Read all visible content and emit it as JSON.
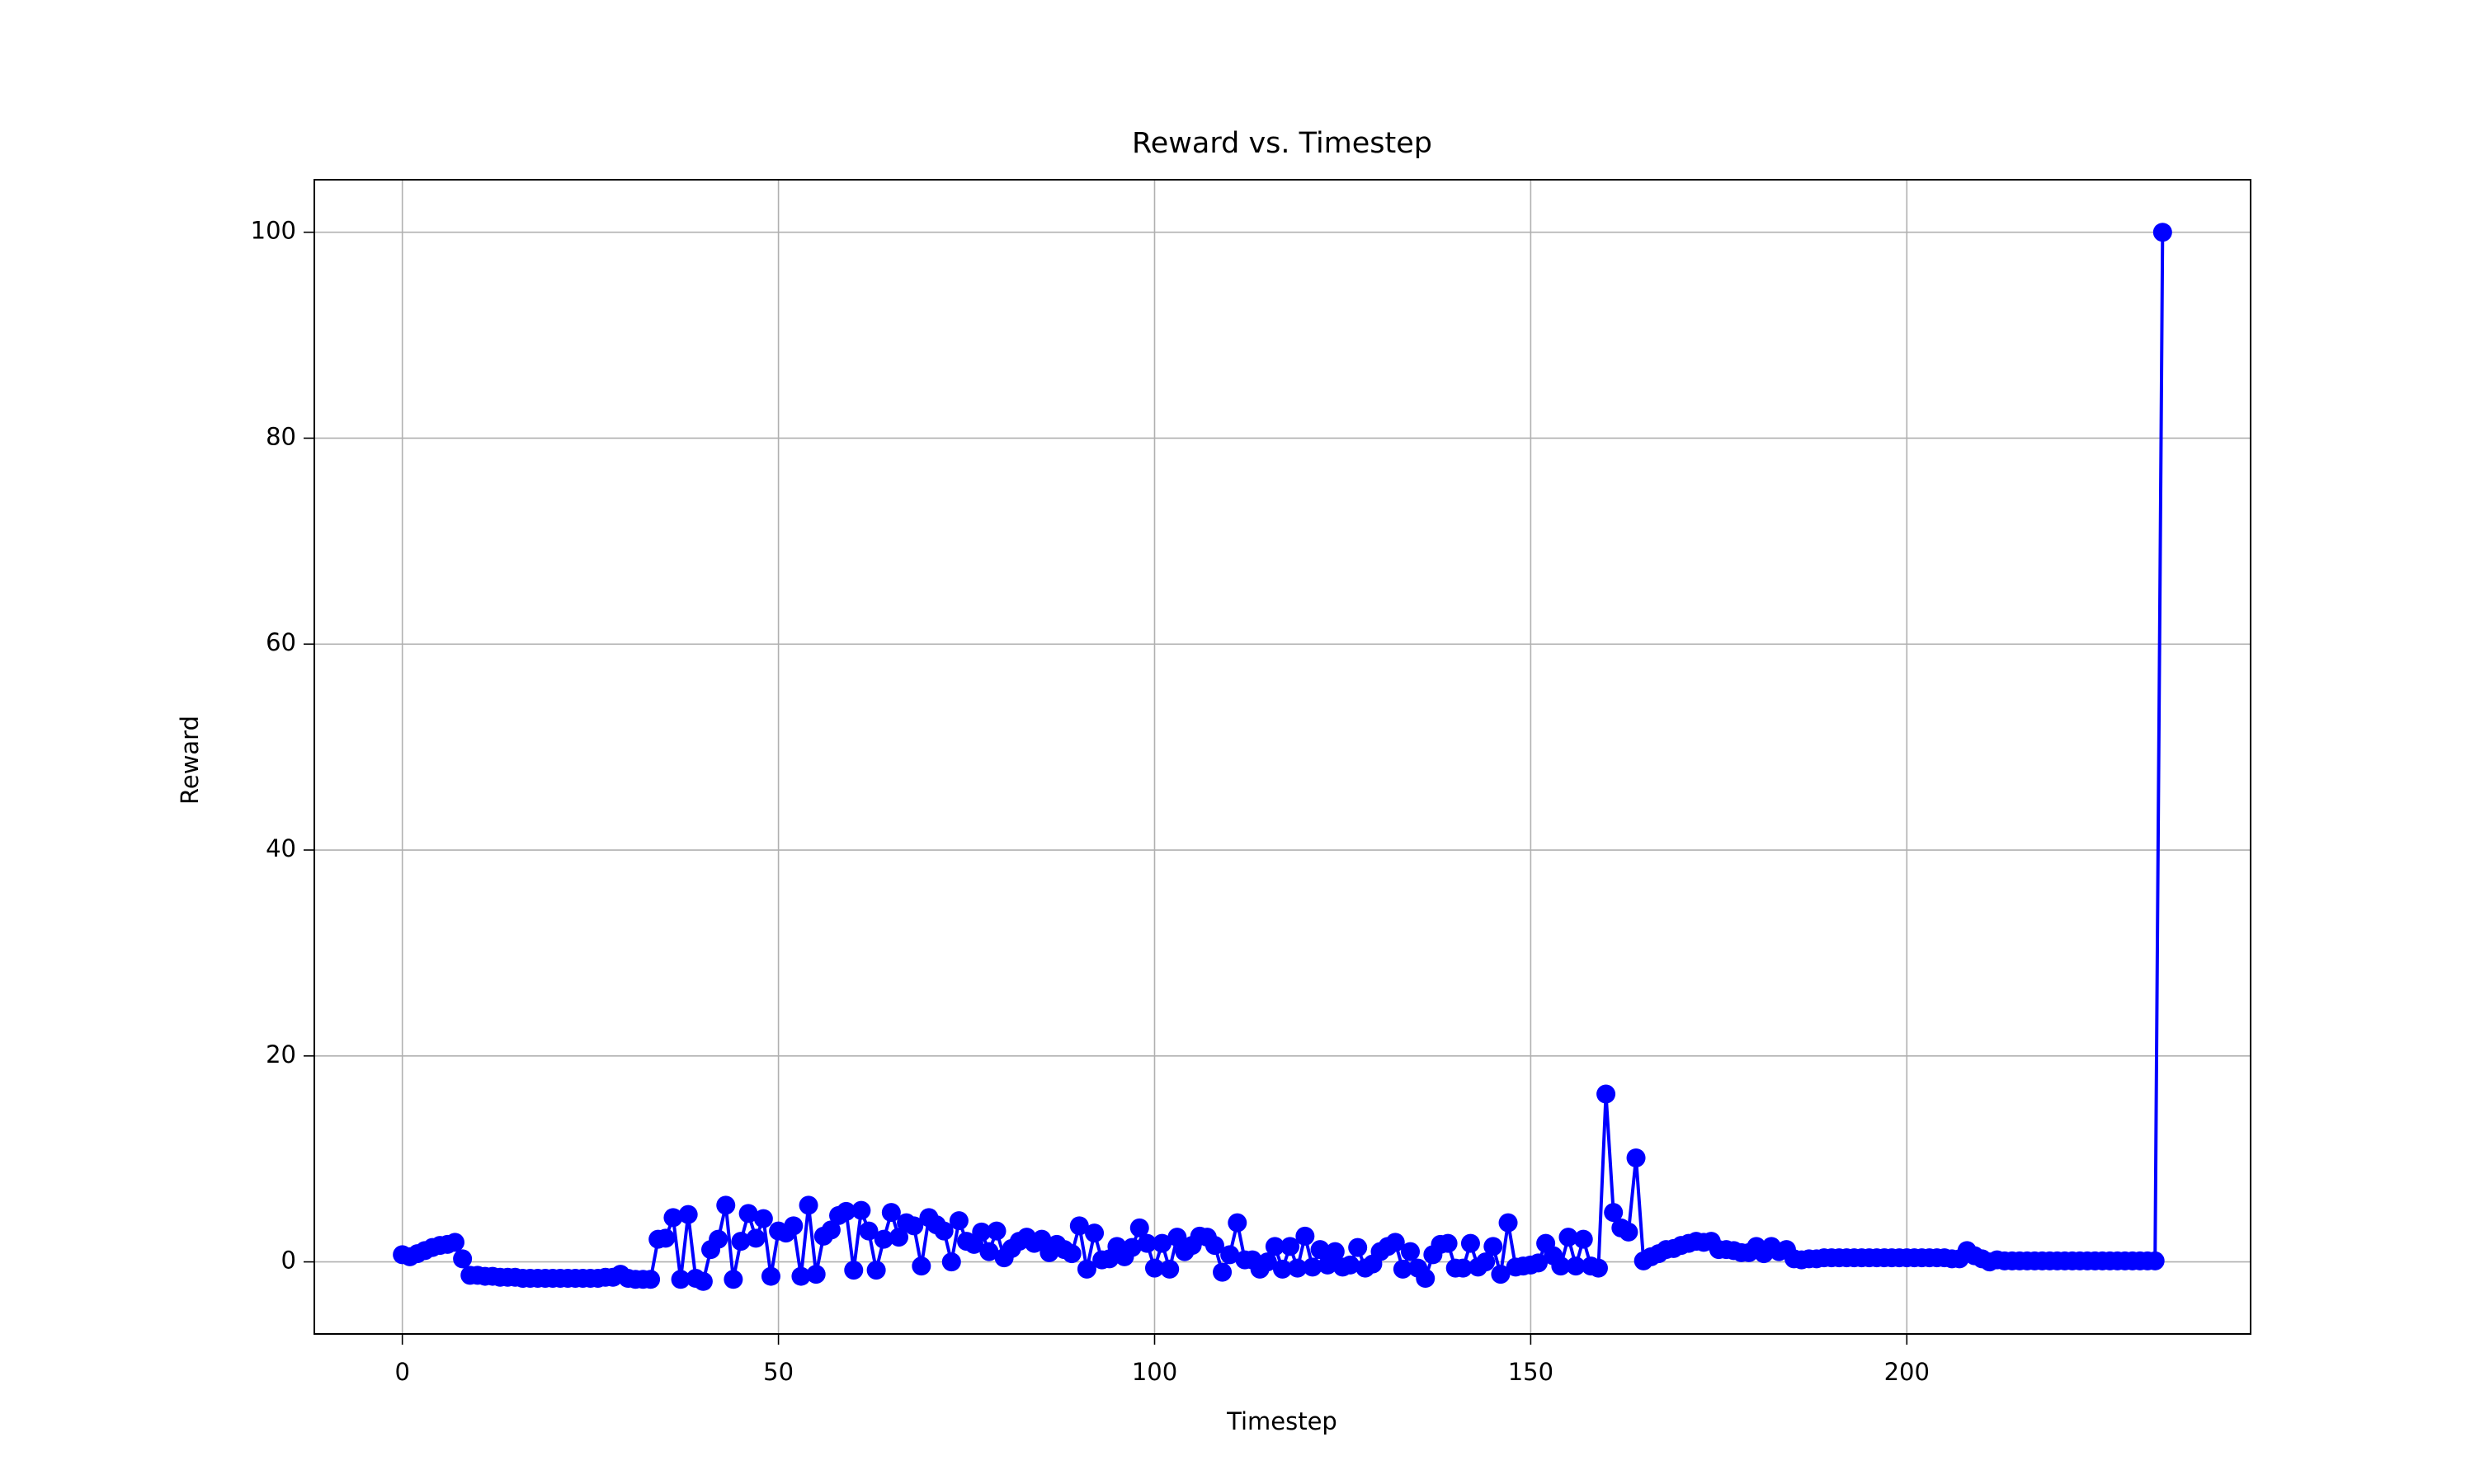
{
  "chart_data": {
    "type": "line",
    "title": "Reward vs. Timestep",
    "x_label": "Timestep",
    "y_label": "Reward",
    "x": [
      0,
      1,
      2,
      3,
      4,
      5,
      6,
      7,
      8,
      9,
      10,
      11,
      12,
      13,
      14,
      15,
      16,
      17,
      18,
      19,
      20,
      21,
      22,
      23,
      24,
      25,
      26,
      27,
      28,
      29,
      30,
      31,
      32,
      33,
      34,
      35,
      36,
      37,
      38,
      39,
      40,
      41,
      42,
      43,
      44,
      45,
      46,
      47,
      48,
      49,
      50,
      51,
      52,
      53,
      54,
      55,
      56,
      57,
      58,
      59,
      60,
      61,
      62,
      63,
      64,
      65,
      66,
      67,
      68,
      69,
      70,
      71,
      72,
      73,
      74,
      75,
      76,
      77,
      78,
      79,
      80,
      81,
      82,
      83,
      84,
      85,
      86,
      87,
      88,
      89,
      90,
      91,
      92,
      93,
      94,
      95,
      96,
      97,
      98,
      99,
      100,
      101,
      102,
      103,
      104,
      105,
      106,
      107,
      108,
      109,
      110,
      111,
      112,
      113,
      114,
      115,
      116,
      117,
      118,
      119,
      120,
      121,
      122,
      123,
      124,
      125,
      126,
      127,
      128,
      129,
      130,
      131,
      132,
      133,
      134,
      135,
      136,
      137,
      138,
      139,
      140,
      141,
      142,
      143,
      144,
      145,
      146,
      147,
      148,
      149,
      150,
      151,
      152,
      153,
      154,
      155,
      156,
      157,
      158,
      159,
      160,
      161,
      162,
      163,
      164,
      165,
      166,
      167,
      168,
      169,
      170,
      171,
      172,
      173,
      174,
      175,
      176,
      177,
      178,
      179,
      180,
      181,
      182,
      183,
      184,
      185,
      186,
      187,
      188,
      189,
      190,
      191,
      192,
      193,
      194,
      195,
      196,
      197,
      198,
      199,
      200,
      201,
      202,
      203,
      204,
      205,
      206,
      207,
      208,
      209,
      210,
      211,
      212,
      213,
      214,
      215,
      216,
      217,
      218,
      219,
      220,
      221,
      222,
      223,
      224,
      225,
      226,
      227,
      228,
      229,
      230,
      231,
      232,
      233,
      234
    ],
    "values": [
      0.7,
      0.5,
      0.8,
      1.1,
      1.4,
      1.6,
      1.7,
      1.9,
      0.3,
      -1.3,
      -1.3,
      -1.4,
      -1.4,
      -1.5,
      -1.5,
      -1.5,
      -1.6,
      -1.6,
      -1.6,
      -1.6,
      -1.6,
      -1.6,
      -1.6,
      -1.6,
      -1.6,
      -1.6,
      -1.6,
      -1.5,
      -1.5,
      -1.2,
      -1.6,
      -1.7,
      -1.7,
      -1.7,
      2.2,
      2.3,
      4.3,
      -1.7,
      4.6,
      -1.6,
      -1.9,
      1.2,
      2.2,
      5.5,
      -1.7,
      2.0,
      4.7,
      2.3,
      4.2,
      -1.4,
      3.0,
      2.8,
      3.5,
      -1.4,
      5.5,
      -1.2,
      2.5,
      3.1,
      4.5,
      4.9,
      -0.8,
      5.0,
      3.0,
      -0.8,
      2.2,
      4.8,
      2.4,
      3.8,
      3.5,
      -0.4,
      4.3,
      3.6,
      3.0,
      0.0,
      4.0,
      2.0,
      1.7,
      2.9,
      1.0,
      3.0,
      0.4,
      1.3,
      2.0,
      2.4,
      1.8,
      2.2,
      0.9,
      1.7,
      1.2,
      0.8,
      3.5,
      -0.7,
      2.8,
      0.2,
      0.3,
      1.5,
      0.5,
      1.4,
      3.3,
      1.8,
      -0.6,
      1.8,
      -0.7,
      2.4,
      1.0,
      1.6,
      2.5,
      2.4,
      1.6,
      -1.0,
      0.7,
      3.8,
      0.2,
      0.2,
      -0.7,
      0.0,
      1.5,
      -0.7,
      1.5,
      -0.6,
      2.5,
      -0.5,
      1.2,
      -0.3,
      1.0,
      -0.5,
      -0.3,
      1.4,
      -0.6,
      -0.2,
      1.0,
      1.5,
      1.9,
      -0.7,
      1.0,
      -0.6,
      -1.6,
      0.7,
      1.7,
      1.8,
      -0.6,
      -0.6,
      1.8,
      -0.5,
      0.0,
      1.5,
      -1.2,
      3.8,
      -0.5,
      -0.4,
      -0.3,
      -0.1,
      1.8,
      0.6,
      -0.4,
      2.4,
      -0.4,
      2.2,
      -0.4,
      -0.6,
      16.3,
      4.8,
      3.3,
      2.9,
      10.1,
      0.1,
      0.5,
      0.8,
      1.2,
      1.3,
      1.6,
      1.8,
      2.0,
      1.9,
      2.0,
      1.2,
      1.2,
      1.1,
      0.9,
      0.9,
      1.5,
      0.8,
      1.5,
      1.0,
      1.2,
      0.3,
      0.2,
      0.3,
      0.3,
      0.4,
      0.4,
      0.4,
      0.4,
      0.4,
      0.4,
      0.4,
      0.4,
      0.4,
      0.4,
      0.4,
      0.4,
      0.4,
      0.4,
      0.4,
      0.4,
      0.4,
      0.3,
      0.3,
      1.1,
      0.6,
      0.3,
      0.0,
      0.2,
      0.1,
      0.1,
      0.1,
      0.1,
      0.1,
      0.1,
      0.1,
      0.1,
      0.1,
      0.1,
      0.1,
      0.1,
      0.1,
      0.1,
      0.1,
      0.1,
      0.1,
      0.1,
      0.1,
      0.1,
      0.1,
      100
    ],
    "color": "#0000ff",
    "marker": "o",
    "xlim": [
      -11.7,
      245.7
    ],
    "ylim": [
      -7,
      105.1
    ],
    "xticks": [
      0,
      50,
      100,
      150,
      200
    ],
    "yticks": [
      0,
      20,
      40,
      60,
      80,
      100
    ],
    "grid": true
  }
}
